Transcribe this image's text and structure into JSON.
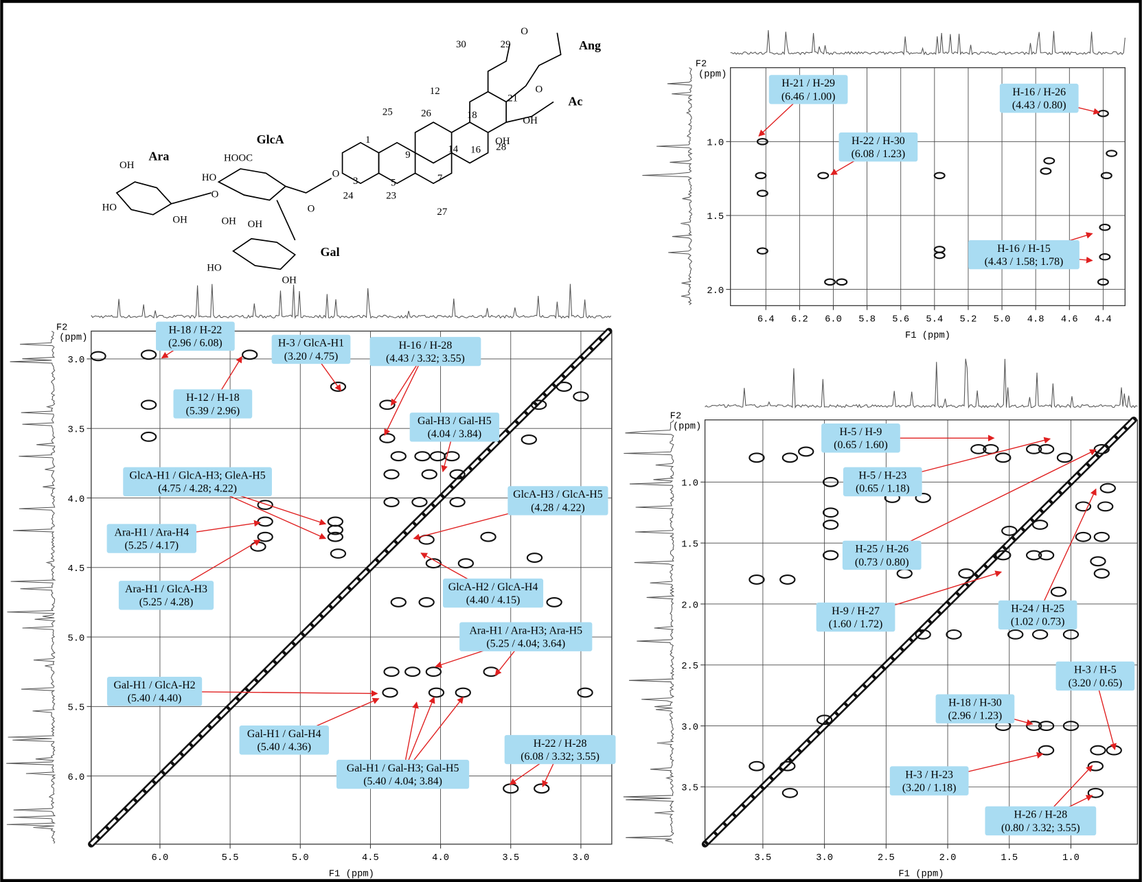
{
  "structure": {
    "labels": [
      "Ara",
      "GlcA",
      "Gal",
      "Ang",
      "Ac",
      "30",
      "29",
      "21",
      "12",
      "18",
      "25",
      "26",
      "14",
      "16",
      "28",
      "1",
      "9",
      "5",
      "3",
      "7",
      "27",
      "24",
      "23",
      "OH",
      "HO",
      "OH",
      "HOOC",
      "HO",
      "O",
      "O",
      "O",
      "OH",
      "OH",
      "HO",
      "OH",
      "O",
      "O",
      "OH",
      "OH"
    ]
  },
  "chart_data": [
    {
      "type": "contour",
      "x_label": "F1 (ppm)",
      "y_label_lines": [
        "F2",
        "(ppm)"
      ],
      "xlim": [
        6.49,
        2.78
      ],
      "ylim": [
        2.8,
        6.49
      ],
      "xticks": [
        {
          "value": 6,
          "label": "6.0"
        },
        5.5,
        {
          "value": 5,
          "label": "5.0"
        },
        4.5,
        {
          "value": 4,
          "label": "4.0"
        },
        3.5,
        {
          "value": 3,
          "label": "3.0"
        }
      ],
      "yticks": [
        {
          "value": 3,
          "label": "3.0"
        },
        3.5,
        {
          "value": 4,
          "label": "4.0"
        },
        4.5,
        {
          "value": 5,
          "label": "5.0"
        },
        5.5,
        {
          "value": 6,
          "label": "6.0"
        }
      ],
      "grid": true,
      "diagonal": true,
      "peaks": {
        "x": [
          6.44,
          6.08,
          5.36,
          6.08,
          6.08,
          4.73,
          4.38,
          4.38,
          5.25,
          5.25,
          5.25,
          5.3,
          4.75,
          4.75,
          4.75,
          4.73,
          4.13,
          4.02,
          3.92,
          4.3,
          4.35,
          4.08,
          3.88,
          4.35,
          4.15,
          3.88,
          3.66,
          4.05,
          3.82,
          3.33,
          4.1,
          3.37,
          3.3,
          3.12,
          3.0,
          4.3,
          4.1,
          3.19,
          4.35,
          4.2,
          4.05,
          3.64,
          4.36,
          4.03,
          3.84,
          2.97,
          3.5,
          3.28
        ],
        "y": [
          2.98,
          2.97,
          2.97,
          3.33,
          3.56,
          3.2,
          3.33,
          3.57,
          4.05,
          4.17,
          4.28,
          4.35,
          4.17,
          4.23,
          4.28,
          4.4,
          3.7,
          3.7,
          3.7,
          3.7,
          3.83,
          3.83,
          3.83,
          4.03,
          4.03,
          4.03,
          4.28,
          4.47,
          4.47,
          4.43,
          4.3,
          3.58,
          3.33,
          3.2,
          3.27,
          4.75,
          4.75,
          4.75,
          5.25,
          5.25,
          5.25,
          5.25,
          5.4,
          5.4,
          5.4,
          5.4,
          6.09,
          6.09
        ]
      },
      "annotations": [
        {
          "lines": [
            "H-18 / H-22",
            "(2.96 / 6.08)"
          ]
        },
        {
          "lines": [
            "H-3 / GlcA-H1",
            "(3.20 / 4.75)"
          ]
        },
        {
          "lines": [
            "H-16 / H-28",
            "(4.43 / 3.32; 3.55)"
          ]
        },
        {
          "lines": [
            "H-12 / H-18",
            "(5.39 / 2.96)"
          ]
        },
        {
          "lines": [
            "Gal-H3 / Gal-H5",
            "(4.04 / 3.84)"
          ]
        },
        {
          "lines": [
            "GlcA-H1 / GlcA-H3; GleA-H5",
            "(4.75 / 4.28; 4.22)"
          ]
        },
        {
          "lines": [
            "GlcA-H3 / GlcA-H5",
            "(4.28 / 4.22)"
          ]
        },
        {
          "lines": [
            "Ara-H1 / Ara-H4",
            "(5.25 / 4.17)"
          ]
        },
        {
          "lines": [
            "Ara-H1 / GlcA-H3",
            "(5.25 / 4.28)"
          ]
        },
        {
          "lines": [
            "GlcA-H2 / GlcA-H4",
            "(4.40 / 4.15)"
          ]
        },
        {
          "lines": [
            "Ara-H1 / Ara-H3; Ara-H5",
            "(5.25 / 4.04; 3.64)"
          ]
        },
        {
          "lines": [
            "Gal-H1 / GlcA-H2",
            "(5.40 / 4.40)"
          ]
        },
        {
          "lines": [
            "Gal-H1 / Gal-H4",
            "(5.40 / 4.36)"
          ]
        },
        {
          "lines": [
            "Gal-H1 / Gal-H3; Gal-H5",
            "(5.40 / 4.04; 3.84)"
          ]
        },
        {
          "lines": [
            "H-22 / H-28",
            "(6.08 / 3.32; 3.55)"
          ]
        }
      ]
    },
    {
      "type": "contour",
      "x_label": "F1 (ppm)",
      "y_label_lines": [
        "F2",
        "(ppm)"
      ],
      "xlim": [
        6.61,
        4.27
      ],
      "ylim": [
        0.5,
        2.11
      ],
      "xticks": [
        6.4,
        6.2,
        {
          "value": 6,
          "label": "6.0"
        },
        5.8,
        5.6,
        5.4,
        5.2,
        {
          "value": 5,
          "label": "5.0"
        },
        4.8,
        4.6,
        4.4
      ],
      "yticks": [
        {
          "value": 1,
          "label": "1.0"
        },
        1.5,
        {
          "value": 2,
          "label": "2.0"
        }
      ],
      "grid": true,
      "diagonal": false,
      "peaks": {
        "x": [
          6.42,
          6.43,
          6.06,
          6.42,
          5.37,
          5.37,
          5.37,
          4.4,
          4.39,
          4.39,
          4.38,
          4.74,
          4.72,
          4.35,
          5.95,
          6.02,
          4.4,
          6.42
        ],
        "y": [
          1.0,
          1.23,
          1.23,
          1.35,
          1.23,
          1.73,
          1.77,
          0.81,
          1.58,
          1.78,
          1.23,
          1.2,
          1.13,
          1.08,
          1.95,
          1.95,
          1.95,
          1.74
        ]
      },
      "annotations": [
        {
          "lines": [
            "H-21 / H-29",
            "(6.46 / 1.00)"
          ]
        },
        {
          "lines": [
            "H-22 / H-30",
            "(6.08 / 1.23)"
          ]
        },
        {
          "lines": [
            "H-16 / H-26",
            "(4.43 / 0.80)"
          ]
        },
        {
          "lines": [
            "H-16 / H-15",
            "(4.43 / 1.58; 1.78)"
          ]
        }
      ]
    },
    {
      "type": "contour",
      "x_label": "F1 (ppm)",
      "y_label_lines": [
        "F2",
        "(ppm)"
      ],
      "xlim": [
        3.97,
        0.46
      ],
      "ylim": [
        0.49,
        3.97
      ],
      "xticks": [
        3.5,
        {
          "value": 3,
          "label": "3.0"
        },
        2.5,
        {
          "value": 2,
          "label": "2.0"
        },
        1.5,
        {
          "value": 1,
          "label": "1.0"
        }
      ],
      "yticks": [
        {
          "value": 1,
          "label": "1.0"
        },
        1.5,
        {
          "value": 2,
          "label": "2.0"
        },
        2.5,
        {
          "value": 3,
          "label": "3.0"
        },
        3.5
      ],
      "grid": true,
      "diagonal": true,
      "peaks": {
        "x": [
          3.55,
          3.28,
          3.15,
          2.95,
          2.95,
          2.95,
          2.45,
          2.2,
          1.75,
          1.65,
          1.55,
          1.3,
          1.2,
          1.05,
          0.75,
          0.7,
          0.72,
          0.75,
          0.75,
          0.78,
          1.3,
          1.2,
          1.55,
          1.25,
          1.5,
          1.1,
          1.95,
          2.2,
          1.45,
          1.25,
          1.0,
          1.2,
          1.3,
          1.0,
          1.55,
          3.0,
          0.65,
          0.78,
          0.8,
          0.8,
          1.2,
          3.55,
          3.3,
          3.28,
          3.55,
          3.3,
          2.95,
          2.35,
          1.85,
          0.9,
          0.9
        ],
        "y": [
          0.8,
          0.8,
          0.75,
          1.0,
          1.25,
          1.35,
          1.13,
          1.13,
          0.73,
          0.73,
          0.8,
          0.73,
          0.73,
          0.8,
          0.73,
          1.05,
          1.2,
          1.45,
          1.75,
          1.65,
          1.6,
          1.6,
          1.6,
          1.35,
          1.4,
          1.9,
          2.25,
          2.25,
          2.25,
          2.25,
          2.25,
          3.0,
          3.0,
          3.0,
          3.0,
          2.95,
          3.2,
          3.2,
          3.33,
          3.55,
          3.2,
          3.33,
          3.33,
          3.55,
          1.8,
          1.8,
          1.6,
          1.75,
          1.75,
          1.2,
          1.45
        ]
      },
      "annotations": [
        {
          "lines": [
            "H-5 / H-9",
            "(0.65 / 1.60)"
          ]
        },
        {
          "lines": [
            "H-5 / H-23",
            "(0.65 / 1.18)"
          ]
        },
        {
          "lines": [
            "H-25 / H-26",
            "(0.73 / 0.80)"
          ]
        },
        {
          "lines": [
            "H-9 / H-27",
            "(1.60 / 1.72)"
          ]
        },
        {
          "lines": [
            "H-24 / H-25",
            "(1.02 / 0.73)"
          ]
        },
        {
          "lines": [
            "H-3 / H-5",
            "(3.20 / 0.65)"
          ]
        },
        {
          "lines": [
            "H-18 / H-30",
            "(2.96 / 1.23)"
          ]
        },
        {
          "lines": [
            "H-3 / H-23",
            "(3.20 / 1.18)"
          ]
        },
        {
          "lines": [
            "H-26 / H-28",
            "(0.80 / 3.32; 3.55)"
          ]
        }
      ]
    }
  ]
}
